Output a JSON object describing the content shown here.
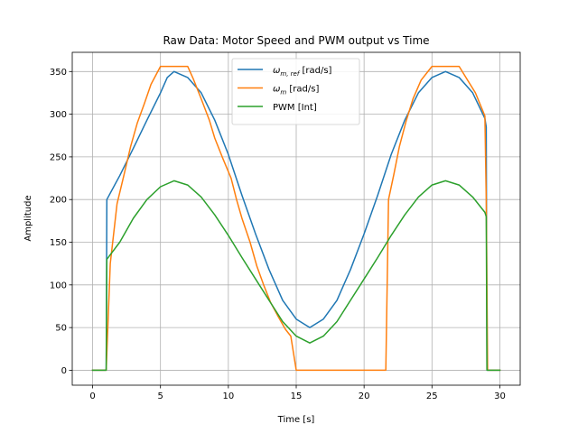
{
  "chart_data": {
    "type": "line",
    "title": "Raw Data: Motor Speed and PWM output vs Time",
    "xlabel": "Time [s]",
    "ylabel": "Amplitude",
    "xlim": [
      -1.5,
      31.5
    ],
    "ylim": [
      -17.5,
      372.5
    ],
    "xticks": [
      0,
      5,
      10,
      15,
      20,
      25,
      30
    ],
    "yticks": [
      0,
      50,
      100,
      150,
      200,
      250,
      300,
      350
    ],
    "grid": true,
    "legend_position": "upper-center",
    "series": [
      {
        "name": "ω_m,ref [rad/s]",
        "legend_main": "ω",
        "legend_sub": "m, ref",
        "legend_unit": " [rad/s]",
        "color": "#1f77b4",
        "points": [
          [
            0,
            0
          ],
          [
            1,
            0
          ],
          [
            1.05,
            200
          ],
          [
            2,
            228
          ],
          [
            3,
            260
          ],
          [
            4,
            293
          ],
          [
            5,
            325
          ],
          [
            5.5,
            343
          ],
          [
            6,
            350
          ],
          [
            7,
            343
          ],
          [
            8,
            325
          ],
          [
            9,
            293
          ],
          [
            10,
            253
          ],
          [
            11,
            205
          ],
          [
            12,
            160
          ],
          [
            13,
            118
          ],
          [
            14,
            82
          ],
          [
            15,
            60
          ],
          [
            16,
            50
          ],
          [
            17,
            60
          ],
          [
            18,
            82
          ],
          [
            19,
            118
          ],
          [
            20,
            160
          ],
          [
            21,
            205
          ],
          [
            22,
            253
          ],
          [
            23,
            293
          ],
          [
            24,
            325
          ],
          [
            25,
            343
          ],
          [
            26,
            350
          ],
          [
            27,
            343
          ],
          [
            28,
            325
          ],
          [
            28.9,
            295
          ],
          [
            29,
            285
          ],
          [
            29.05,
            0
          ],
          [
            30,
            0
          ]
        ]
      },
      {
        "name": "ω_m [rad/s]",
        "legend_main": "ω",
        "legend_sub": "m",
        "legend_unit": " [rad/s]",
        "color": "#ff7f0e",
        "points": [
          [
            0,
            0
          ],
          [
            1,
            0
          ],
          [
            1.3,
            125
          ],
          [
            1.8,
            195
          ],
          [
            2.3,
            228
          ],
          [
            2.8,
            262
          ],
          [
            3.3,
            290
          ],
          [
            3.8,
            312
          ],
          [
            4.3,
            335
          ],
          [
            5,
            356
          ],
          [
            7,
            356
          ],
          [
            7.4,
            342
          ],
          [
            8,
            318
          ],
          [
            8.6,
            293
          ],
          [
            9,
            272
          ],
          [
            9.6,
            248
          ],
          [
            10.2,
            225
          ],
          [
            10.6,
            200
          ],
          [
            11,
            178
          ],
          [
            11.6,
            150
          ],
          [
            12.1,
            122
          ],
          [
            12.6,
            100
          ],
          [
            13.1,
            80
          ],
          [
            13.7,
            62
          ],
          [
            14.2,
            48
          ],
          [
            14.6,
            40
          ],
          [
            14.8,
            20
          ],
          [
            15,
            0
          ],
          [
            21.6,
            0
          ],
          [
            21.8,
            200
          ],
          [
            22.2,
            230
          ],
          [
            22.6,
            262
          ],
          [
            23.1,
            292
          ],
          [
            23.6,
            318
          ],
          [
            24.2,
            340
          ],
          [
            25,
            356
          ],
          [
            27,
            356
          ],
          [
            27.5,
            343
          ],
          [
            28.2,
            325
          ],
          [
            28.9,
            298
          ],
          [
            29,
            200
          ],
          [
            29.1,
            0
          ],
          [
            30,
            0
          ]
        ]
      },
      {
        "name": "PWM [Int]",
        "legend_main": "PWM [Int]",
        "legend_sub": "",
        "legend_unit": "",
        "color": "#2ca02c",
        "points": [
          [
            0,
            0
          ],
          [
            1,
            0
          ],
          [
            1.05,
            130
          ],
          [
            2,
            150
          ],
          [
            3,
            178
          ],
          [
            4,
            200
          ],
          [
            5,
            215
          ],
          [
            6,
            222
          ],
          [
            7,
            217
          ],
          [
            8,
            203
          ],
          [
            9,
            182
          ],
          [
            10,
            158
          ],
          [
            11,
            132
          ],
          [
            12,
            107
          ],
          [
            13,
            82
          ],
          [
            14,
            57
          ],
          [
            15,
            40
          ],
          [
            16,
            32
          ],
          [
            17,
            40
          ],
          [
            18,
            57
          ],
          [
            19,
            82
          ],
          [
            20,
            107
          ],
          [
            21,
            132
          ],
          [
            22,
            158
          ],
          [
            23,
            182
          ],
          [
            24,
            203
          ],
          [
            25,
            217
          ],
          [
            26,
            222
          ],
          [
            27,
            217
          ],
          [
            28,
            203
          ],
          [
            28.9,
            185
          ],
          [
            29,
            180
          ],
          [
            29.05,
            0
          ],
          [
            30,
            0
          ]
        ]
      }
    ]
  }
}
